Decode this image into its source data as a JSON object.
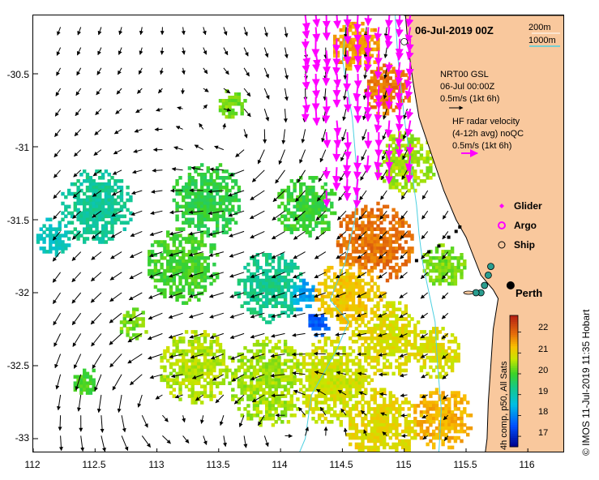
{
  "title": "06-Jul-2019 00Z",
  "isobaths": {
    "shallow": "200m",
    "deep": "1000m"
  },
  "gsl_note": {
    "line1": "NRT00 GSL",
    "line2": "06-Jul 00:00Z",
    "line3": "0.5m/s (1kt 6h)"
  },
  "hf_note": {
    "line1": "HF radar velocity",
    "line2": "(4-12h avg) noQC",
    "line3": "0.5m/s (1kt 6h)"
  },
  "legend": {
    "glider": "Glider",
    "argo": "Argo",
    "ship": "Ship"
  },
  "place": "Perth",
  "credit": "© IMOS 11-Jul-2019 11:35 Hobart",
  "colorbar": {
    "title": "4h comp, p50, All Sats",
    "ticks": [
      "22",
      "21",
      "20",
      "19",
      "18",
      "17"
    ],
    "tick_values": [
      22,
      21,
      20,
      19,
      18,
      17
    ],
    "range": [
      16.5,
      22.8
    ]
  },
  "axes": {
    "x_ticks": [
      "112",
      "112.5",
      "113",
      "113.5",
      "114",
      "114.5",
      "115",
      "115.5",
      "116"
    ],
    "x_values": [
      112,
      112.5,
      113,
      113.5,
      114,
      114.5,
      115,
      115.5,
      116
    ],
    "y_ticks": [
      "-30.5",
      "-31",
      "-31.5",
      "-32",
      "-32.5",
      "-33"
    ],
    "y_values": [
      -30.5,
      -31,
      -31.5,
      -32,
      -32.5,
      -33
    ],
    "lon_range": [
      112,
      116.3
    ],
    "lat_range": [
      -33.1,
      -30.1
    ]
  },
  "colors": {
    "land": "#f9c89d",
    "isobath": "#4dd0e1",
    "hf_arrow": "#ff00ff",
    "argo": "#ff00ff",
    "text": "#000000"
  }
}
